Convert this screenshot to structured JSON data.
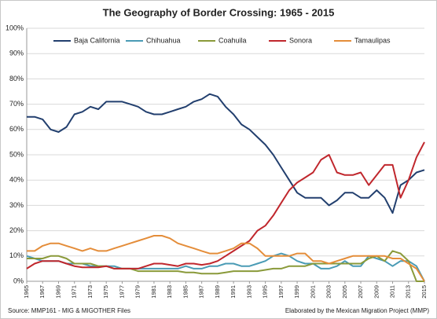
{
  "chart_data": {
    "type": "line",
    "title": "The Geography of Border Crossing: 1965 - 2015",
    "source": "Source: MMP161 - MIG & MIGOTHER Files",
    "credit": "Elaborated by the Mexican Migration Project (MMP)",
    "x": [
      1965,
      1966,
      1967,
      1968,
      1969,
      1970,
      1971,
      1972,
      1973,
      1974,
      1975,
      1976,
      1977,
      1978,
      1979,
      1980,
      1981,
      1982,
      1983,
      1984,
      1985,
      1986,
      1987,
      1988,
      1989,
      1990,
      1991,
      1992,
      1993,
      1994,
      1995,
      1996,
      1997,
      1998,
      1999,
      2000,
      2001,
      2002,
      2003,
      2004,
      2005,
      2006,
      2007,
      2008,
      2009,
      2010,
      2011,
      2012,
      2013,
      2014,
      2015
    ],
    "xlim": [
      1965,
      2015
    ],
    "xticks": [
      1965,
      1967,
      1969,
      1971,
      1973,
      1975,
      1977,
      1979,
      1981,
      1983,
      1985,
      1987,
      1989,
      1991,
      1993,
      1995,
      1997,
      1999,
      2001,
      2003,
      2005,
      2007,
      2009,
      2011,
      2013,
      2015
    ],
    "ylim": [
      0,
      100
    ],
    "yticks": [
      {
        "value": 0,
        "label": "0%"
      },
      {
        "value": 10,
        "label": "10%"
      },
      {
        "value": 20,
        "label": "20%"
      },
      {
        "value": 30,
        "label": "30%"
      },
      {
        "value": 40,
        "label": "40%"
      },
      {
        "value": 50,
        "label": "50%"
      },
      {
        "value": 60,
        "label": "60%"
      },
      {
        "value": 70,
        "label": "70%"
      },
      {
        "value": 80,
        "label": "80%"
      },
      {
        "value": 90,
        "label": "90%"
      },
      {
        "value": 100,
        "label": "100%"
      }
    ],
    "grid": true,
    "legend": "top",
    "series": [
      {
        "name": "Baja California",
        "color": "#223f6e",
        "values": [
          65,
          65,
          64,
          60,
          59,
          61,
          66,
          67,
          69,
          68,
          71,
          71,
          71,
          70,
          69,
          67,
          66,
          66,
          67,
          68,
          69,
          71,
          72,
          74,
          73,
          69,
          66,
          62,
          60,
          57,
          54,
          50,
          45,
          40,
          35,
          33,
          33,
          33,
          30,
          32,
          35,
          35,
          33,
          33,
          36,
          33,
          27,
          38,
          40,
          43,
          44
        ]
      },
      {
        "name": "Chihuahua",
        "color": "#4a9bb5",
        "values": [
          10,
          9,
          8,
          8,
          8,
          7,
          7,
          7,
          6,
          6,
          6,
          6,
          5,
          5,
          5,
          5,
          5,
          5,
          5,
          5,
          6,
          5,
          5,
          6,
          6,
          7,
          7,
          6,
          6,
          7,
          8,
          10,
          11,
          10,
          8,
          7,
          7,
          5,
          5,
          6,
          8,
          6,
          6,
          10,
          9,
          8,
          6,
          8,
          8,
          6,
          0
        ]
      },
      {
        "name": "Coahuila",
        "color": "#8a9a3a",
        "values": [
          9,
          9,
          9,
          10,
          10,
          9,
          7,
          7,
          7,
          6,
          6,
          5,
          5,
          5,
          4,
          4,
          4,
          4,
          4,
          4,
          3.5,
          3.5,
          3,
          3,
          3,
          3.5,
          4,
          4,
          4,
          4,
          4.5,
          5,
          5,
          6,
          6,
          6,
          7,
          7,
          7,
          7,
          7,
          7,
          7,
          9,
          10,
          8,
          12,
          11,
          8,
          0,
          0
        ]
      },
      {
        "name": "Sonora",
        "color": "#c0272d",
        "values": [
          5,
          7,
          8,
          8,
          8,
          7,
          6,
          5.5,
          5.5,
          5.5,
          6,
          5,
          5,
          5,
          5,
          6,
          7,
          7,
          6.5,
          6,
          7,
          7,
          6.5,
          7,
          8,
          10,
          12,
          14,
          16,
          20,
          22,
          26,
          31,
          36,
          39,
          41,
          43,
          48,
          50,
          43,
          42,
          42,
          43,
          38,
          42,
          46,
          46,
          33,
          40,
          49,
          55
        ]
      },
      {
        "name": "Tamaulipas",
        "color": "#e48d3a",
        "values": [
          12,
          12,
          14,
          15,
          15,
          14,
          13,
          12,
          13,
          12,
          12,
          13,
          14,
          15,
          16,
          17,
          18,
          18,
          17,
          15,
          14,
          13,
          12,
          11,
          11,
          12,
          13,
          15,
          15,
          13,
          10,
          10,
          10,
          10,
          11,
          11,
          8,
          8,
          7,
          8,
          9,
          10,
          10,
          10,
          10,
          10,
          9,
          9,
          7,
          5,
          0
        ]
      }
    ]
  }
}
